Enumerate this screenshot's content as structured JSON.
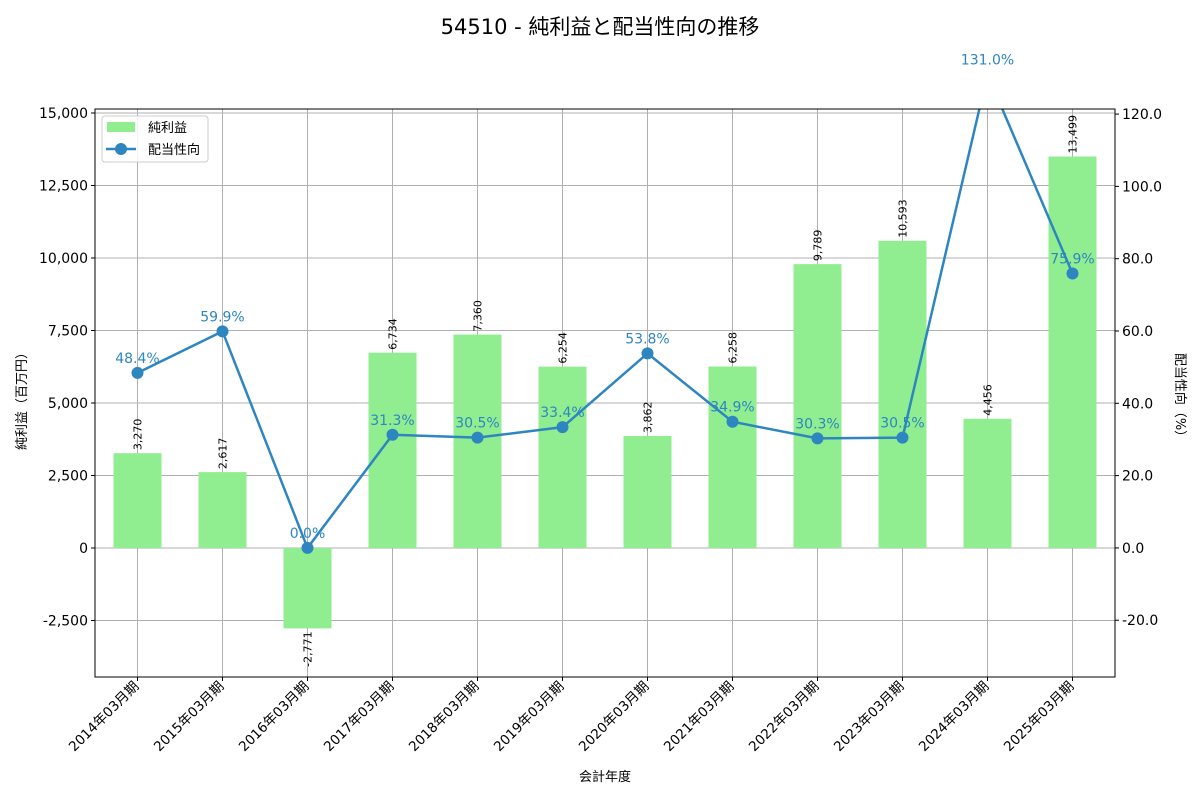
{
  "chart_data": {
    "type": "bar+line",
    "title": "54510 - 純利益と配当性向の推移",
    "xlabel": "会計年度",
    "ylabel": "純利益（百万円）",
    "y2label": "配当性向（%）",
    "categories": [
      "2014年03月期",
      "2015年03月期",
      "2016年03月期",
      "2017年03月期",
      "2018年03月期",
      "2019年03月期",
      "2020年03月期",
      "2021年03月期",
      "2022年03月期",
      "2023年03月期",
      "2024年03月期",
      "2025年03月期"
    ],
    "series": [
      {
        "name": "純利益",
        "type": "bar",
        "axis": "left",
        "color": "#90ee90",
        "values": [
          3270,
          2617,
          -2771,
          6734,
          7360,
          6254,
          3862,
          6258,
          9789,
          10593,
          4456,
          13499
        ],
        "labels": [
          "3,270",
          "2,617",
          "-2,771",
          "6,734",
          "7,360",
          "6,254",
          "3,862",
          "6,258",
          "9,789",
          "10,593",
          "4,456",
          "13,499"
        ]
      },
      {
        "name": "配当性向",
        "type": "line",
        "axis": "right",
        "color": "#2e86c1",
        "values": [
          48.4,
          59.9,
          0.0,
          31.3,
          30.5,
          33.4,
          53.8,
          34.9,
          30.3,
          30.5,
          131.0,
          75.9
        ],
        "labels": [
          "48.4%",
          "59.9%",
          "0.0%",
          "31.3%",
          "30.5%",
          "33.4%",
          "53.8%",
          "34.9%",
          "30.3%",
          "30.5%",
          "131.0%",
          "75.9%"
        ]
      }
    ],
    "ylim": [
      -4448,
      15138
    ],
    "y2lim": [
      -35.7,
      121.4
    ],
    "yticks": [
      -2500,
      0,
      2500,
      5000,
      7500,
      10000,
      12500,
      15000
    ],
    "ytick_labels": [
      "-2,500",
      "0",
      "2,500",
      "5,000",
      "7,500",
      "10,000",
      "12,500",
      "15,000"
    ],
    "y2ticks": [
      -20,
      0,
      20,
      40,
      60,
      80,
      100,
      120
    ],
    "y2tick_labels": [
      "-20.0",
      "0.0",
      "20.0",
      "40.0",
      "60.0",
      "80.0",
      "100.0",
      "120.0"
    ],
    "grid": true,
    "legend": "top-left"
  }
}
